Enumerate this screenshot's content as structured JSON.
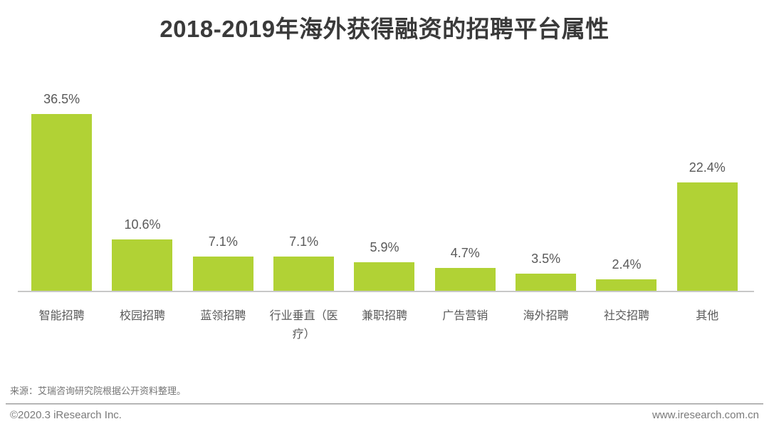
{
  "title": "2018-2019年海外获得融资的招聘平台属性",
  "chart_data": {
    "type": "bar",
    "title": "2018-2019年海外获得融资的招聘平台属性",
    "categories": [
      "智能招聘",
      "校园招聘",
      "蓝领招聘",
      "行业垂直（医疗）",
      "兼职招聘",
      "广告营销",
      "海外招聘",
      "社交招聘",
      "其他"
    ],
    "values": [
      36.5,
      10.6,
      7.1,
      7.1,
      5.9,
      4.7,
      3.5,
      2.4,
      22.4
    ],
    "value_labels": [
      "36.5%",
      "10.6%",
      "7.1%",
      "7.1%",
      "5.9%",
      "4.7%",
      "3.5%",
      "2.4%",
      "22.4%"
    ],
    "unit": "%",
    "xlabel": "",
    "ylabel": "",
    "ylim": [
      0,
      40
    ],
    "grid": false,
    "legend": null,
    "bar_color": "#b1d235",
    "axis_line_color": "#c8c8c8",
    "value_label_color": "#595959",
    "category_label_color": "#595959"
  },
  "footer": {
    "source_note": "来源：艾瑞咨询研究院根据公开资料整理。",
    "copyright": "©2020.3 iResearch Inc.",
    "website": "www.iresearch.com.cn"
  },
  "colors": {
    "title_text": "#3a3a3a",
    "accent_green": "#b1d235",
    "footer_text": "#7a7a7a"
  }
}
